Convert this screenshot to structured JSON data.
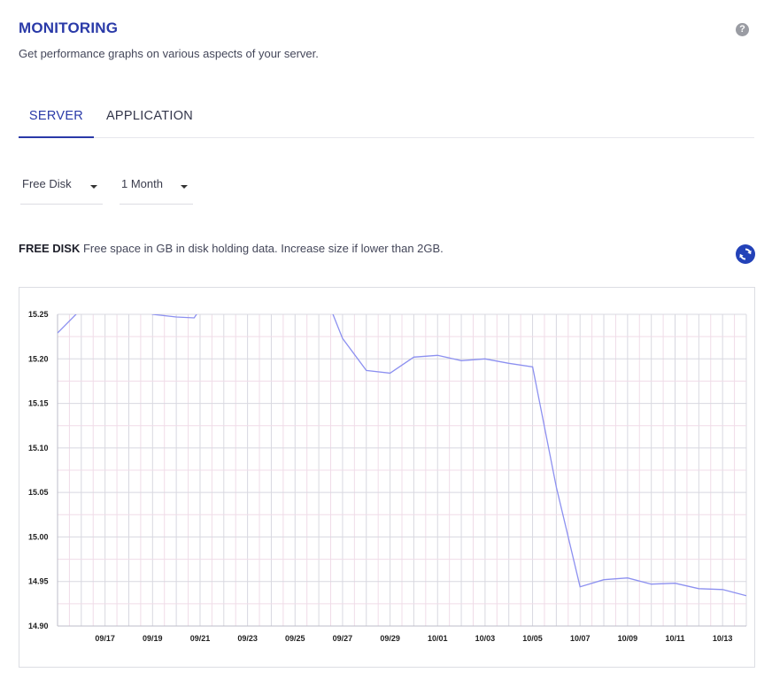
{
  "header": {
    "title": "MONITORING",
    "subtitle": "Get performance graphs on various aspects of your server.",
    "help_icon": "question-circle-icon"
  },
  "tabs": [
    {
      "label": "SERVER",
      "active": true
    },
    {
      "label": "APPLICATION",
      "active": false
    }
  ],
  "filters": {
    "metric": "Free Disk",
    "period": "1 Month"
  },
  "metric_info": {
    "name": "FREE DISK",
    "description": "Free space in GB in disk holding data. Increase size if lower than 2GB.",
    "refresh_icon": "refresh-icon"
  },
  "colors": {
    "accent": "#2a3aa8",
    "line": "#8c90f0",
    "grid_major": "#d8d8e0",
    "grid_minor": "#f0dce8"
  },
  "chart_data": {
    "type": "line",
    "title": "",
    "xlabel": "",
    "ylabel": "",
    "ylim": [
      14.9,
      15.25
    ],
    "y_ticks": [
      "15.25",
      "15.20",
      "15.15",
      "15.10",
      "15.05",
      "15.00",
      "14.95",
      "14.90"
    ],
    "x_ticks": [
      "09/17",
      "09/19",
      "09/21",
      "09/23",
      "09/25",
      "09/27",
      "09/29",
      "10/01",
      "10/03",
      "10/05",
      "10/07",
      "10/09",
      "10/11",
      "10/13"
    ],
    "x_start": "2023-09-15",
    "x_end": "2023-10-14",
    "series": [
      {
        "values": [
          [
            "2023-09-15",
            15.229
          ],
          [
            "2023-09-16",
            15.256
          ],
          [
            "2023-09-17",
            15.266
          ],
          [
            "2023-09-18",
            15.266
          ],
          [
            "2023-09-19",
            15.25
          ],
          [
            "2023-09-20",
            15.247
          ],
          [
            "2023-09-20 18:00",
            15.246
          ],
          [
            "2023-09-21",
            15.256
          ],
          [
            "2023-09-22",
            15.29
          ],
          [
            "2023-09-26",
            15.29
          ],
          [
            "2023-09-27",
            15.223
          ],
          [
            "2023-09-28",
            15.187
          ],
          [
            "2023-09-29",
            15.184
          ],
          [
            "2023-09-30",
            15.202
          ],
          [
            "2023-10-01",
            15.204
          ],
          [
            "2023-10-02",
            15.198
          ],
          [
            "2023-10-03",
            15.2
          ],
          [
            "2023-10-04",
            15.195
          ],
          [
            "2023-10-05",
            15.191
          ],
          [
            "2023-10-06",
            15.056
          ],
          [
            "2023-10-07",
            14.944
          ],
          [
            "2023-10-08",
            14.952
          ],
          [
            "2023-10-09",
            14.954
          ],
          [
            "2023-10-10",
            14.947
          ],
          [
            "2023-10-11",
            14.948
          ],
          [
            "2023-10-12",
            14.942
          ],
          [
            "2023-10-13",
            14.941
          ],
          [
            "2023-10-14",
            14.934
          ]
        ]
      }
    ]
  }
}
